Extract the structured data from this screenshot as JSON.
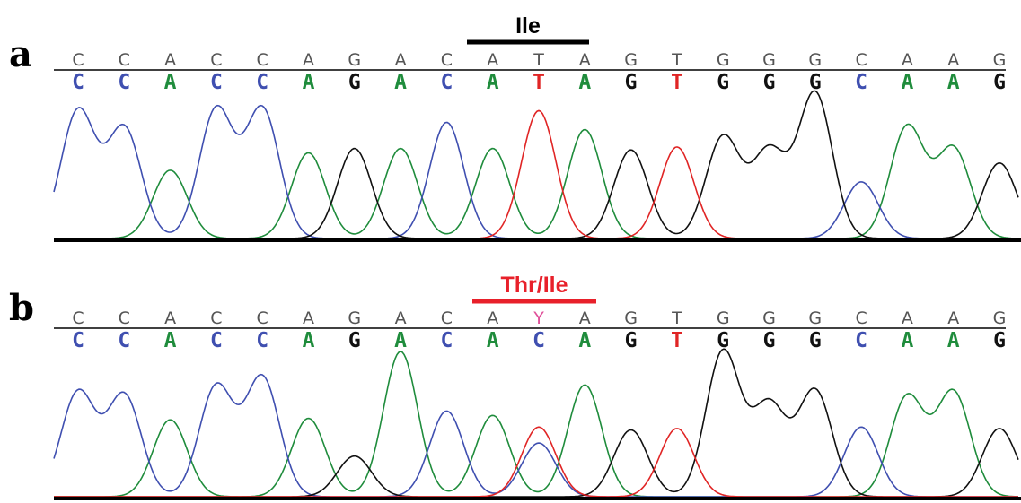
{
  "colors": {
    "A": "#1f8c3c",
    "C": "#3f4fb0",
    "G": "#111111",
    "T": "#e02525",
    "Y": "#e0509a",
    "call": "#555555",
    "codon_a": "#000000",
    "codon_b": "#e8202a"
  },
  "panels": [
    {
      "label": "a",
      "codon_label": "Ile",
      "reference_sequence": [
        "C",
        "C",
        "A",
        "C",
        "C",
        "A",
        "G",
        "A",
        "C",
        "A",
        "T",
        "A",
        "G",
        "T",
        "G",
        "G",
        "G",
        "C",
        "A",
        "A",
        "G"
      ],
      "called_sequence": [
        "C",
        "C",
        "A",
        "C",
        "C",
        "A",
        "G",
        "A",
        "C",
        "A",
        "T",
        "A",
        "G",
        "T",
        "G",
        "G",
        "G",
        "C",
        "A",
        "A",
        "G"
      ],
      "peaks": [
        {
          "base": "C",
          "height": 0.88
        },
        {
          "base": "C",
          "height": 0.76
        },
        {
          "base": "A",
          "height": 0.47
        },
        {
          "base": "C",
          "height": 0.89
        },
        {
          "base": "C",
          "height": 0.89
        },
        {
          "base": "A",
          "height": 0.59
        },
        {
          "base": "G",
          "height": 0.62
        },
        {
          "base": "A",
          "height": 0.62
        },
        {
          "base": "C",
          "height": 0.8
        },
        {
          "base": "A",
          "height": 0.62
        },
        {
          "base": "T",
          "height": 0.88
        },
        {
          "base": "A",
          "height": 0.75
        },
        {
          "base": "G",
          "height": 0.61
        },
        {
          "base": "T",
          "height": 0.63
        },
        {
          "base": "G",
          "height": 0.7
        },
        {
          "base": "G",
          "height": 0.6
        },
        {
          "base": "G",
          "height": 1.0
        },
        {
          "base": "C",
          "height": 0.39
        },
        {
          "base": "A",
          "height": 0.77
        },
        {
          "base": "A",
          "height": 0.62
        },
        {
          "base": "G",
          "height": 0.52
        }
      ]
    },
    {
      "label": "b",
      "codon_label": "Thr/Ile",
      "reference_sequence": [
        "C",
        "C",
        "A",
        "C",
        "C",
        "A",
        "G",
        "A",
        "C",
        "A",
        "Y",
        "A",
        "G",
        "T",
        "G",
        "G",
        "G",
        "C",
        "A",
        "A",
        "G"
      ],
      "called_sequence": [
        "C",
        "C",
        "A",
        "C",
        "C",
        "A",
        "G",
        "A",
        "C",
        "A",
        "C",
        "A",
        "G",
        "T",
        "G",
        "G",
        "G",
        "C",
        "A",
        "A",
        "G"
      ],
      "peaks": [
        {
          "base": "C",
          "height": 0.72
        },
        {
          "base": "C",
          "height": 0.7
        },
        {
          "base": "A",
          "height": 0.53
        },
        {
          "base": "C",
          "height": 0.76
        },
        {
          "base": "C",
          "height": 0.82
        },
        {
          "base": "A",
          "height": 0.54
        },
        {
          "base": "G",
          "height": 0.28
        },
        {
          "base": "A",
          "height": 1.0
        },
        {
          "base": "C",
          "height": 0.59
        },
        {
          "base": "A",
          "height": 0.56
        },
        {
          "base": "C",
          "height": 0.37,
          "secondary": {
            "base": "T",
            "height": 0.48
          }
        },
        {
          "base": "A",
          "height": 0.77
        },
        {
          "base": "G",
          "height": 0.46
        },
        {
          "base": "T",
          "height": 0.47
        },
        {
          "base": "G",
          "height": 1.0
        },
        {
          "base": "G",
          "height": 0.63
        },
        {
          "base": "G",
          "height": 0.73
        },
        {
          "base": "C",
          "height": 0.48
        },
        {
          "base": "A",
          "height": 0.69
        },
        {
          "base": "A",
          "height": 0.72
        },
        {
          "base": "G",
          "height": 0.47
        }
      ]
    }
  ]
}
